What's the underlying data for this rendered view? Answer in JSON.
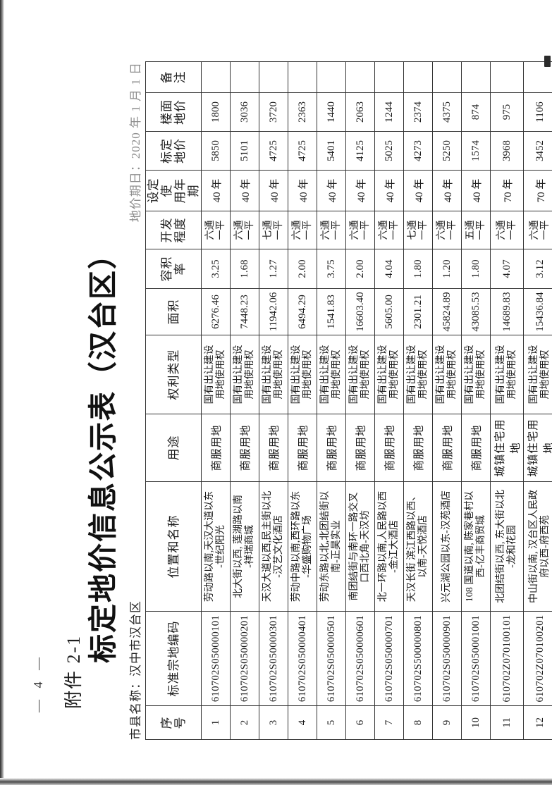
{
  "page": {
    "page_number": "— 4 —",
    "attachment_label": "附件 2-1",
    "title": "标定地价信息公示表（汉台区）",
    "meta_left": "市县名称：汉中市汉台区",
    "meta_right": "地价期日：2020 年 1 月 1 日"
  },
  "table": {
    "columns": [
      "序\n号",
      "标准宗地编码",
      "位置和名称",
      "用途",
      "权利类型",
      "面积",
      "容积率",
      "开发\n程度",
      "设定使\n用年期",
      "标定\n地价",
      "楼面\n地价",
      "备\n注"
    ],
    "row_keys": [
      "seq",
      "code",
      "location",
      "use",
      "right_type",
      "area",
      "plot_ratio",
      "development",
      "tenure",
      "land_price",
      "floor_price",
      "remark"
    ],
    "rows": [
      {
        "seq": "1",
        "code": "610702S050000101",
        "location": "劳动路以南,天汉大道以东\n-世纪阳光",
        "use": "商服用地",
        "right_type": "国有出让建设\n用地使用权",
        "area": "6276.46",
        "plot_ratio": "3.25",
        "development": "六通\n一平",
        "tenure": "40 年",
        "land_price": "5850",
        "floor_price": "1800",
        "remark": ""
      },
      {
        "seq": "2",
        "code": "610702S050000201",
        "location": "北大街以西, 莲湖路以南\n-祥瑞商城",
        "use": "商服用地",
        "right_type": "国有出让建设\n用地使用权",
        "area": "7448.23",
        "plot_ratio": "1.68",
        "development": "六通\n一平",
        "tenure": "40 年",
        "land_price": "5101",
        "floor_price": "3036",
        "remark": ""
      },
      {
        "seq": "3",
        "code": "610702S050000301",
        "location": "天汉大道以西,民主街以北\n-汉艺文化酒店",
        "use": "商服用地",
        "right_type": "国有出让建设\n用地使用权",
        "area": "11942.06",
        "plot_ratio": "1.27",
        "development": "七通\n一平",
        "tenure": "40 年",
        "land_price": "4725",
        "floor_price": "3720",
        "remark": ""
      },
      {
        "seq": "4",
        "code": "610702S050000401",
        "location": "劳动中路以南,西环路以东\n-华盛购物广场",
        "use": "商服用地",
        "right_type": "国有出让建设\n用地使用权",
        "area": "6494.29",
        "plot_ratio": "2.00",
        "development": "六通\n一平",
        "tenure": "40 年",
        "land_price": "4725",
        "floor_price": "2363",
        "remark": ""
      },
      {
        "seq": "5",
        "code": "610702S050000501",
        "location": "劳动东路以北,北团结街以\n南-正昊实业",
        "use": "商服用地",
        "right_type": "国有出让建设\n用地使用权",
        "area": "1541.83",
        "plot_ratio": "3.75",
        "development": "六通\n一平",
        "tenure": "40 年",
        "land_price": "5401",
        "floor_price": "1440",
        "remark": ""
      },
      {
        "seq": "6",
        "code": "610702S050000601",
        "location": "南团结街与南环一路交叉\n口西北角-天汉坊",
        "use": "商服用地",
        "right_type": "国有出让建设\n用地使用权",
        "area": "16603.40",
        "plot_ratio": "2.00",
        "development": "六通\n一平",
        "tenure": "40 年",
        "land_price": "4125",
        "floor_price": "2063",
        "remark": ""
      },
      {
        "seq": "7",
        "code": "610702S050000701",
        "location": "北一环路以南,人民路以西\n-金江大酒店",
        "use": "商服用地",
        "right_type": "国有出让建设\n用地使用权",
        "area": "5605.00",
        "plot_ratio": "4.04",
        "development": "六通\n一平",
        "tenure": "40 年",
        "land_price": "5025",
        "floor_price": "1244",
        "remark": ""
      },
      {
        "seq": "8",
        "code": "610702S500000801",
        "location": "天汉长街 滨江西路以西、\n以南-天悦酒店",
        "use": "商服用地",
        "right_type": "国有出让建设\n用地使用权",
        "area": "2301.21",
        "plot_ratio": "1.80",
        "development": "七通\n一平",
        "tenure": "40 年",
        "land_price": "4273",
        "floor_price": "2374",
        "remark": ""
      },
      {
        "seq": "9",
        "code": "610702S050000901",
        "location": "兴元湖公园以东-汉苑酒店",
        "use": "商服用地",
        "right_type": "国有出让建设\n用地使用权",
        "area": "45824.89",
        "plot_ratio": "1.20",
        "development": "六通\n一平",
        "tenure": "40 年",
        "land_price": "5250",
        "floor_price": "4375",
        "remark": ""
      },
      {
        "seq": "10",
        "code": "610702S050001001",
        "location": "108 国道以南, 陈家巷村以\n西-亿丰商贸城",
        "use": "商服用地",
        "right_type": "国有出让建设\n用地使用权",
        "area": "43085.53",
        "plot_ratio": "1.80",
        "development": "五通\n一平",
        "tenure": "40 年",
        "land_price": "1574",
        "floor_price": "874",
        "remark": ""
      },
      {
        "seq": "11",
        "code": "610702Z070100101",
        "location": "北团结街以西, 东大街以北\n-龙和花园",
        "use": "城镇住宅用地",
        "right_type": "国有出让建设\n用地使用权",
        "area": "14689.83",
        "plot_ratio": "4.07",
        "development": "六通\n一平",
        "tenure": "70 年",
        "land_price": "3968",
        "floor_price": "975",
        "remark": ""
      },
      {
        "seq": "12",
        "code": "610702Z070100201",
        "location": "中山街以南, 汉台区人民政\n府以西-府西苑",
        "use": "城镇住宅用地",
        "right_type": "国有出让建设\n用地使用权",
        "area": "15436.84",
        "plot_ratio": "3.12",
        "development": "六通\n一平",
        "tenure": "70 年",
        "land_price": "3452",
        "floor_price": "1106",
        "remark": ""
      }
    ]
  }
}
